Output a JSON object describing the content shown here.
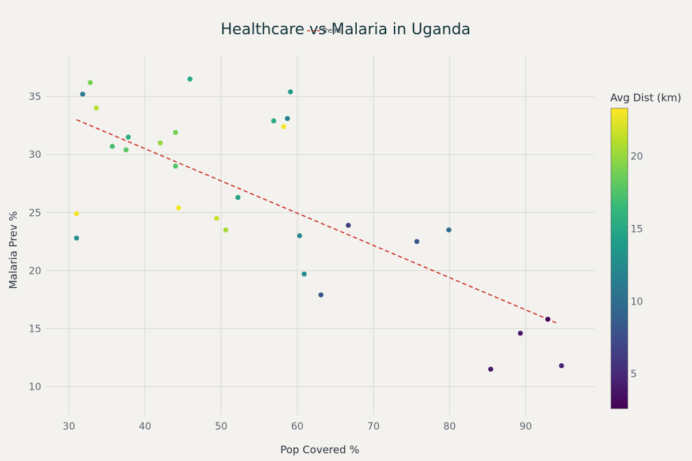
{
  "chart_data": {
    "type": "scatter",
    "title": "Healthcare vs Malaria in Uganda",
    "xlabel": "Pop Covered %",
    "ylabel": "Malaria Prev %",
    "xlim": [
      27,
      99
    ],
    "ylim": [
      7.5,
      38.5
    ],
    "xticks": [
      30,
      40,
      50,
      60,
      70,
      80,
      90
    ],
    "yticks": [
      10,
      15,
      20,
      25,
      30,
      35
    ],
    "grid": true,
    "colorbar": {
      "title": "Avg Dist (km)",
      "range": [
        2.6,
        23.3
      ],
      "ticks": [
        5,
        10,
        15,
        20
      ],
      "colorscale": "viridis"
    },
    "legend": {
      "entries": [
        "Trend"
      ],
      "placement": "top-center"
    },
    "trend_line": {
      "name": "Trend",
      "x": [
        31,
        94
      ],
      "y": [
        33.0,
        15.5
      ],
      "color": "#cc2a22",
      "style": "dashed"
    },
    "points": [
      {
        "x": 31.0,
        "y": 24.9,
        "c": 23.0
      },
      {
        "x": 31.0,
        "y": 22.8,
        "c": 13.0
      },
      {
        "x": 31.8,
        "y": 35.2,
        "c": 11.0
      },
      {
        "x": 32.8,
        "y": 36.2,
        "c": 19.0
      },
      {
        "x": 33.6,
        "y": 34.0,
        "c": 21.0
      },
      {
        "x": 35.7,
        "y": 30.7,
        "c": 17.0
      },
      {
        "x": 37.5,
        "y": 30.4,
        "c": 18.0
      },
      {
        "x": 37.8,
        "y": 31.5,
        "c": 15.5
      },
      {
        "x": 42.0,
        "y": 31.0,
        "c": 20.0
      },
      {
        "x": 44.0,
        "y": 31.9,
        "c": 19.0
      },
      {
        "x": 44.0,
        "y": 29.0,
        "c": 17.5
      },
      {
        "x": 44.4,
        "y": 25.4,
        "c": 23.0
      },
      {
        "x": 45.9,
        "y": 36.5,
        "c": 15.0
      },
      {
        "x": 49.4,
        "y": 24.5,
        "c": 21.5
      },
      {
        "x": 50.6,
        "y": 23.5,
        "c": 20.5
      },
      {
        "x": 52.2,
        "y": 26.3,
        "c": 14.5
      },
      {
        "x": 56.9,
        "y": 32.9,
        "c": 15.0
      },
      {
        "x": 58.2,
        "y": 32.4,
        "c": 23.0
      },
      {
        "x": 58.7,
        "y": 33.1,
        "c": 12.0
      },
      {
        "x": 59.1,
        "y": 35.4,
        "c": 13.5
      },
      {
        "x": 60.3,
        "y": 23.0,
        "c": 12.0
      },
      {
        "x": 60.9,
        "y": 19.7,
        "c": 12.5
      },
      {
        "x": 63.1,
        "y": 17.9,
        "c": 8.0
      },
      {
        "x": 66.7,
        "y": 23.9,
        "c": 6.5
      },
      {
        "x": 75.7,
        "y": 22.5,
        "c": 8.0
      },
      {
        "x": 79.9,
        "y": 23.5,
        "c": 10.0
      },
      {
        "x": 85.4,
        "y": 11.5,
        "c": 4.0
      },
      {
        "x": 89.3,
        "y": 14.6,
        "c": 4.0
      },
      {
        "x": 92.9,
        "y": 15.8,
        "c": 2.6
      },
      {
        "x": 94.7,
        "y": 11.8,
        "c": 4.5
      }
    ]
  }
}
